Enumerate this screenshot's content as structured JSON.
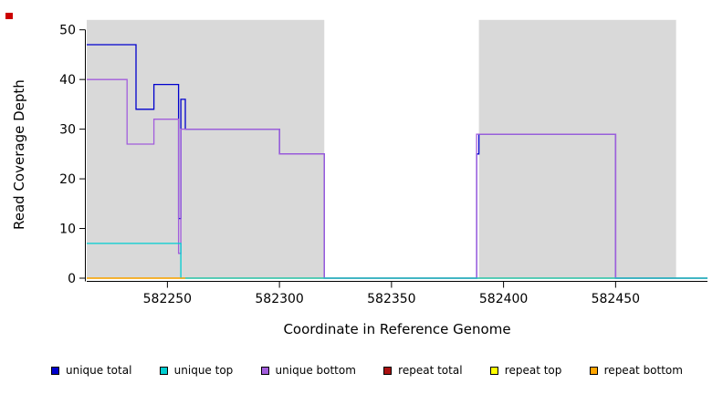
{
  "artifacts": {
    "red_mark_color": "#cc0000"
  },
  "chart_data": {
    "type": "line",
    "subtype": "step-coverage-plot",
    "title": "",
    "xlabel": "Coordinate in Reference Genome",
    "ylabel": "Read Coverage Depth",
    "xlim": [
      582214,
      582491
    ],
    "ylim": [
      0,
      53.8
    ],
    "x_ticks": [
      582250,
      582300,
      582350,
      582400,
      582450
    ],
    "y_ticks": [
      0,
      10,
      20,
      30,
      40,
      50
    ],
    "grid": false,
    "axis_color": "#000000",
    "background_regions": [
      {
        "x0": 582214,
        "x1": 582320,
        "y0": 0,
        "y1": 52,
        "color": "#d9d9d9"
      },
      {
        "x0": 582389,
        "x1": 582477,
        "y0": 0,
        "y1": 52,
        "color": "#d9d9d9"
      }
    ],
    "series": [
      {
        "name": "repeat total",
        "color": "#aa1111",
        "points": [
          [
            582214,
            0
          ],
          [
            582491,
            0
          ]
        ]
      },
      {
        "name": "repeat top",
        "color": "#ffff00",
        "points": [
          [
            582214,
            0
          ],
          [
            582491,
            0
          ]
        ]
      },
      {
        "name": "unique total",
        "color": "#0000cd",
        "points": [
          [
            582214,
            47
          ],
          [
            582236,
            47
          ],
          [
            582236,
            34
          ],
          [
            582244,
            34
          ],
          [
            582244,
            39
          ],
          [
            582255,
            39
          ],
          [
            582255,
            12
          ],
          [
            582256,
            12
          ],
          [
            582256,
            36
          ],
          [
            582258,
            36
          ],
          [
            582258,
            30
          ],
          [
            582300,
            30
          ],
          [
            582300,
            25
          ],
          [
            582320,
            25
          ],
          [
            582320,
            0
          ],
          [
            582388,
            0
          ],
          [
            582388,
            25
          ],
          [
            582389,
            25
          ],
          [
            582389,
            29
          ],
          [
            582450,
            29
          ],
          [
            582450,
            0
          ],
          [
            582491,
            0
          ]
        ]
      },
      {
        "name": "unique bottom",
        "color": "#a25ddc",
        "points": [
          [
            582214,
            40
          ],
          [
            582232,
            40
          ],
          [
            582232,
            27
          ],
          [
            582244,
            27
          ],
          [
            582244,
            32
          ],
          [
            582255,
            32
          ],
          [
            582255,
            5
          ],
          [
            582256,
            5
          ],
          [
            582256,
            30
          ],
          [
            582300,
            30
          ],
          [
            582300,
            25
          ],
          [
            582320,
            25
          ],
          [
            582320,
            0
          ],
          [
            582388,
            0
          ],
          [
            582388,
            29
          ],
          [
            582450,
            29
          ],
          [
            582450,
            0
          ],
          [
            582491,
            0
          ]
        ]
      },
      {
        "name": "unique top",
        "color": "#00ced1",
        "points": [
          [
            582214,
            7
          ],
          [
            582256,
            7
          ],
          [
            582256,
            0
          ],
          [
            582491,
            0
          ]
        ]
      },
      {
        "name": "repeat bottom",
        "color": "#ffa500",
        "points": [
          [
            582214,
            0
          ],
          [
            582258,
            0
          ]
        ]
      }
    ],
    "legend": [
      {
        "label": "unique total",
        "color": "#0000cd"
      },
      {
        "label": "unique top",
        "color": "#00ced1"
      },
      {
        "label": "unique bottom",
        "color": "#a25ddc"
      },
      {
        "label": "repeat total",
        "color": "#aa1111"
      },
      {
        "label": "repeat top",
        "color": "#ffff00"
      },
      {
        "label": "repeat bottom",
        "color": "#ffa500"
      }
    ],
    "legend_position": "bottom"
  }
}
